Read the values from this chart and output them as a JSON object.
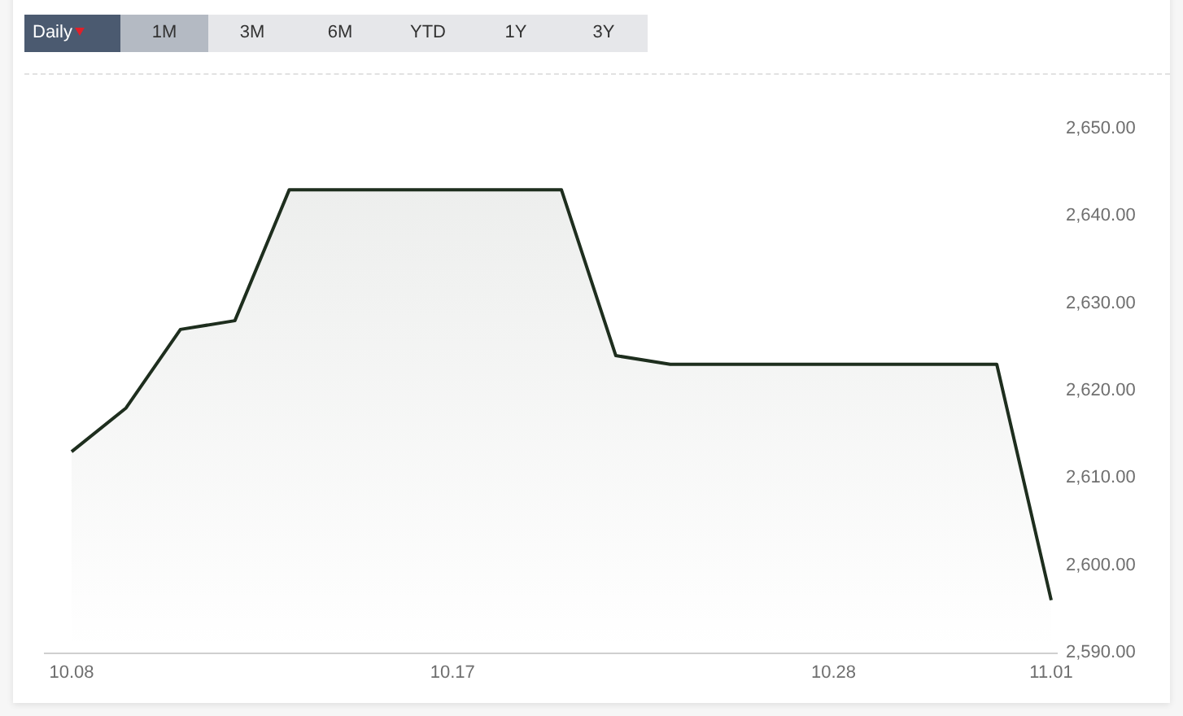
{
  "chart_data": {
    "type": "area",
    "categories": [
      "10.08",
      null,
      null,
      null,
      null,
      null,
      null,
      "10.17",
      null,
      null,
      null,
      null,
      null,
      null,
      "10.28",
      null,
      null,
      null,
      "11.01"
    ],
    "values": [
      2613,
      2618,
      2627,
      2628,
      2643,
      2643,
      2643,
      2643,
      2643,
      2643,
      2624,
      2623,
      2623,
      2623,
      2623,
      2623,
      2623,
      2623,
      2596
    ],
    "color": "#1e2e1e",
    "marker": "none",
    "ylim": [
      2590,
      2650
    ],
    "yticks": [
      {
        "value": 2590,
        "label": "2,590.00"
      },
      {
        "value": 2600,
        "label": "2,600.00"
      },
      {
        "value": 2610,
        "label": "2,610.00"
      },
      {
        "value": 2620,
        "label": "2,620.00"
      },
      {
        "value": 2630,
        "label": "2,630.00"
      },
      {
        "value": 2640,
        "label": "2,640.00"
      },
      {
        "value": 2650,
        "label": "2,650.00"
      }
    ],
    "annotations": [
      "Daily",
      "1M",
      "3M",
      "6M",
      "YTD",
      "1Y",
      "3Y"
    ]
  }
}
